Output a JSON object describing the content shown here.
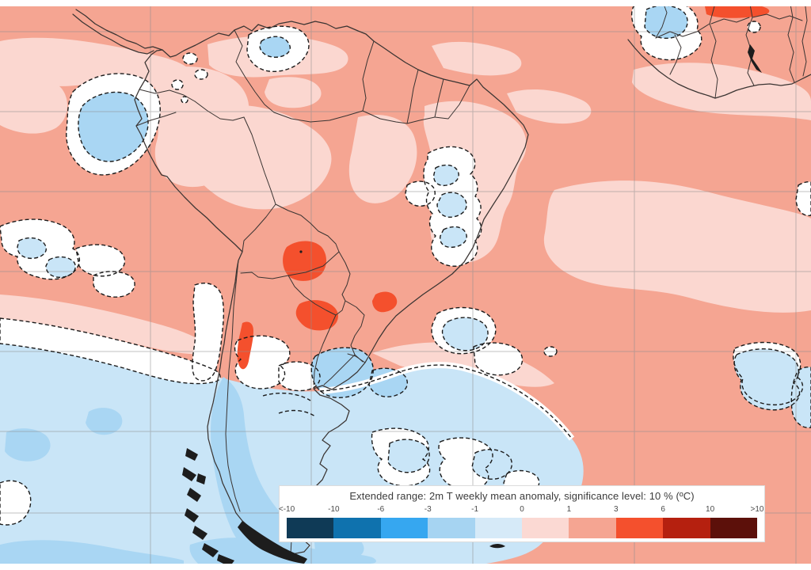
{
  "legend": {
    "title": "Extended range: 2m T weekly mean anomaly, significance level: 10 % (ºC)",
    "ticks": [
      "<-10",
      "-10",
      "-6",
      "-3",
      "-1",
      "0",
      "1",
      "3",
      "6",
      "10",
      ">10"
    ],
    "colors": [
      "#0f3a56",
      "#0f72ae",
      "#36a7f0",
      "#a6d4f2",
      "#d6eaf8",
      "#fbd9d3",
      "#f5a592",
      "#f4502d",
      "#b5200f",
      "#5c100a"
    ]
  },
  "map": {
    "palette": {
      "warm_base": "#f5a592",
      "warm_light": "#fbd7d0",
      "hot": "#f4502d",
      "cool_light": "#c9e5f7",
      "cool_medium": "#a9d6f3",
      "nonsignificant": "#ffffff",
      "grid": "#8f8f8f",
      "border": "#3a3432",
      "contour": "#1b1b1b",
      "land_ink": "#1d1d1d",
      "margin": "#ffffff"
    }
  }
}
